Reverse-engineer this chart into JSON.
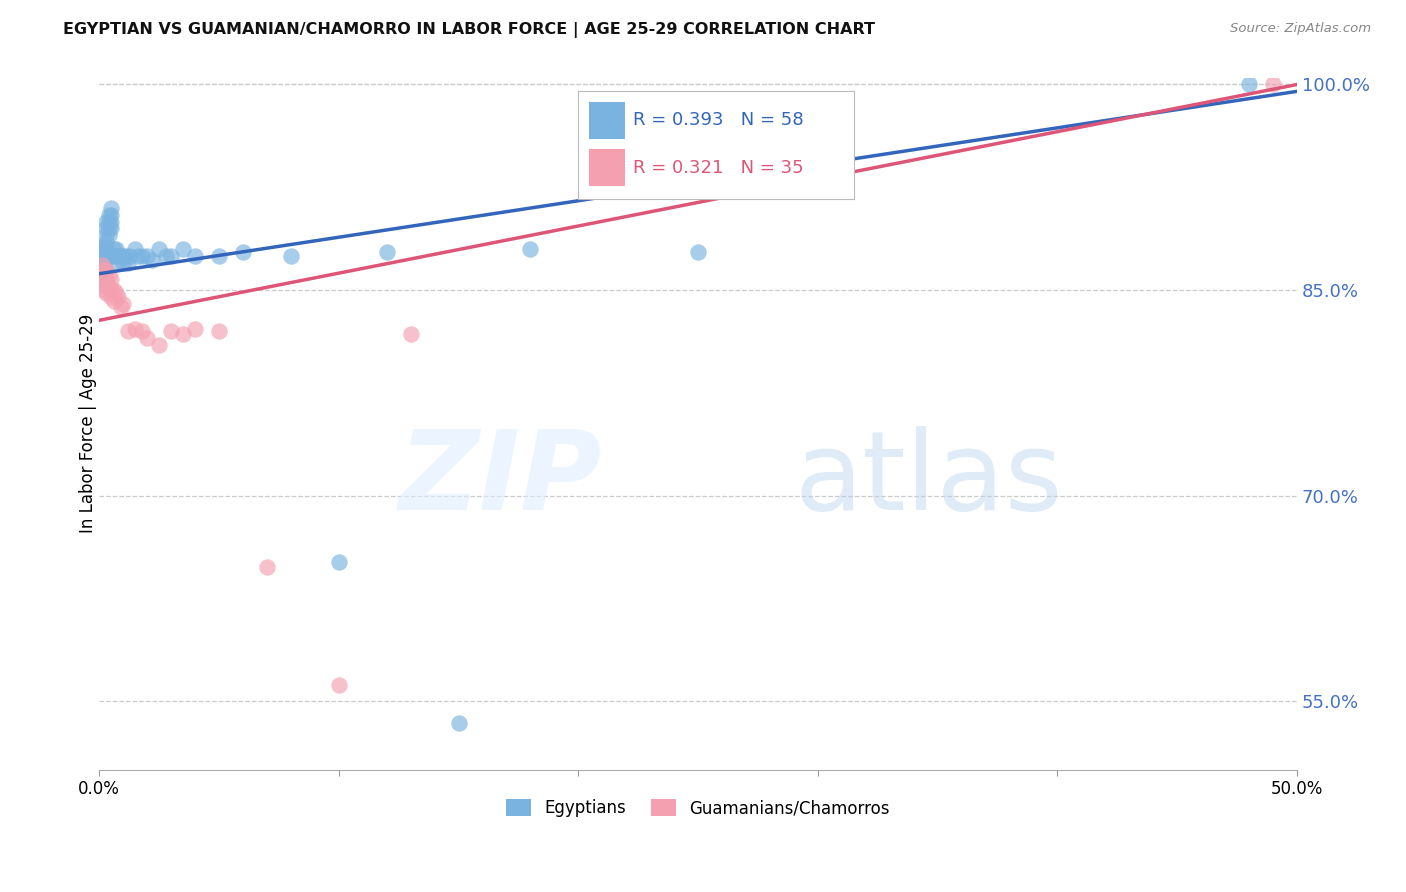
{
  "title": "EGYPTIAN VS GUAMANIAN/CHAMORRO IN LABOR FORCE | AGE 25-29 CORRELATION CHART",
  "source": "Source: ZipAtlas.com",
  "ylabel": "In Labor Force | Age 25-29",
  "xlim": [
    0.0,
    0.5
  ],
  "ylim": [
    0.5,
    1.005
  ],
  "yticks": [
    0.55,
    0.7,
    0.85,
    1.0
  ],
  "ytick_labels": [
    "55.0%",
    "70.0%",
    "85.0%",
    "100.0%"
  ],
  "xticks": [
    0.0,
    0.1,
    0.2,
    0.3,
    0.4,
    0.5
  ],
  "xtick_labels": [
    "0.0%",
    "",
    "",
    "",
    "",
    "50.0%"
  ],
  "blue_R": 0.393,
  "blue_N": 58,
  "pink_R": 0.321,
  "pink_N": 35,
  "blue_color": "#7ab3e0",
  "blue_line_color": "#3366bb",
  "pink_color": "#f4a0b0",
  "pink_line_color": "#dd5577",
  "legend_label_blue": "Egyptians",
  "legend_label_pink": "Guamanians/Chamorros",
  "blue_x": [
    0.001,
    0.001,
    0.001,
    0.001,
    0.002,
    0.002,
    0.002,
    0.002,
    0.002,
    0.002,
    0.002,
    0.002,
    0.003,
    0.003,
    0.003,
    0.003,
    0.003,
    0.003,
    0.003,
    0.004,
    0.004,
    0.004,
    0.004,
    0.005,
    0.005,
    0.005,
    0.005,
    0.006,
    0.006,
    0.007,
    0.007,
    0.008,
    0.008,
    0.009,
    0.01,
    0.01,
    0.011,
    0.012,
    0.013,
    0.015,
    0.016,
    0.018,
    0.02,
    0.022,
    0.025,
    0.028,
    0.03,
    0.035,
    0.04,
    0.05,
    0.06,
    0.08,
    0.1,
    0.12,
    0.15,
    0.18,
    0.25,
    0.48
  ],
  "blue_y": [
    0.88,
    0.875,
    0.87,
    0.865,
    0.882,
    0.878,
    0.875,
    0.872,
    0.868,
    0.865,
    0.862,
    0.858,
    0.9,
    0.895,
    0.89,
    0.885,
    0.88,
    0.878,
    0.875,
    0.905,
    0.9,
    0.895,
    0.89,
    0.91,
    0.905,
    0.9,
    0.895,
    0.88,
    0.875,
    0.88,
    0.875,
    0.875,
    0.87,
    0.875,
    0.875,
    0.87,
    0.875,
    0.87,
    0.875,
    0.88,
    0.875,
    0.875,
    0.875,
    0.872,
    0.88,
    0.875,
    0.875,
    0.88,
    0.875,
    0.875,
    0.878,
    0.875,
    0.652,
    0.878,
    0.534,
    0.88,
    0.878,
    1.0
  ],
  "pink_x": [
    0.001,
    0.001,
    0.001,
    0.002,
    0.002,
    0.002,
    0.002,
    0.003,
    0.003,
    0.003,
    0.003,
    0.004,
    0.004,
    0.005,
    0.005,
    0.005,
    0.006,
    0.006,
    0.007,
    0.008,
    0.009,
    0.01,
    0.012,
    0.015,
    0.018,
    0.02,
    0.025,
    0.03,
    0.035,
    0.04,
    0.05,
    0.07,
    0.1,
    0.13,
    0.49
  ],
  "pink_y": [
    0.868,
    0.862,
    0.858,
    0.865,
    0.86,
    0.855,
    0.85,
    0.865,
    0.858,
    0.852,
    0.848,
    0.86,
    0.852,
    0.858,
    0.85,
    0.845,
    0.85,
    0.842,
    0.848,
    0.845,
    0.838,
    0.84,
    0.82,
    0.822,
    0.82,
    0.815,
    0.81,
    0.82,
    0.818,
    0.822,
    0.82,
    0.648,
    0.562,
    0.818,
    1.0
  ],
  "blue_line_x0": 0.0,
  "blue_line_y0": 0.862,
  "blue_line_x1": 0.5,
  "blue_line_y1": 0.995,
  "pink_line_x0": 0.0,
  "pink_line_y0": 0.828,
  "pink_line_x1": 0.5,
  "pink_line_y1": 1.0
}
